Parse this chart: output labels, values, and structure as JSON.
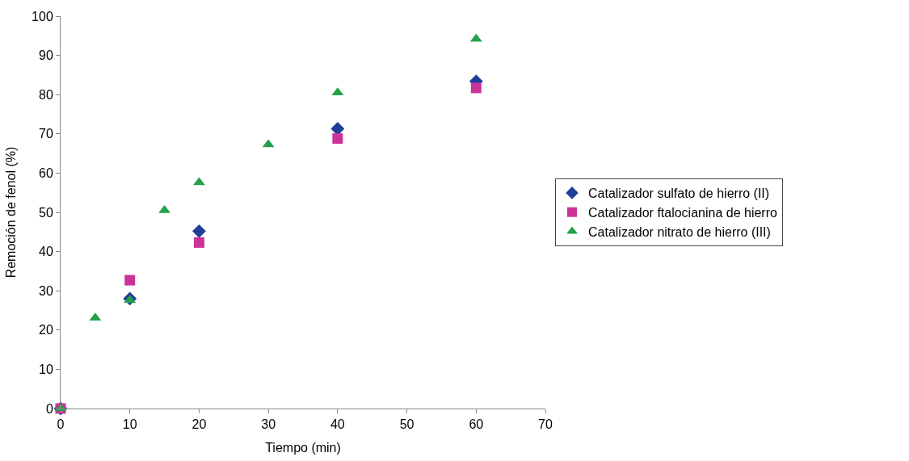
{
  "chart_data": {
    "type": "scatter",
    "xlabel": "Tiempo (min)",
    "ylabel": "Remoción de fenol (%)",
    "xlim": [
      0,
      70
    ],
    "xticks": [
      0,
      10,
      20,
      30,
      40,
      50,
      60,
      70
    ],
    "ylim": [
      0,
      100
    ],
    "yticks": [
      0,
      10,
      20,
      30,
      40,
      50,
      60,
      70,
      80,
      90,
      100
    ],
    "legend": "right",
    "series": [
      {
        "name": "Catalizador sulfato de hierro (II)",
        "color": "#1f3f99",
        "marker": "diamond",
        "x": [
          0,
          10,
          20,
          40,
          60
        ],
        "values": [
          0,
          28,
          45.2,
          71.3,
          83.4
        ]
      },
      {
        "name": "Catalizador ftalocianina de hierro",
        "color": "#cc3399",
        "marker": "square",
        "x": [
          0,
          10,
          20,
          40,
          60
        ],
        "values": [
          0,
          32.7,
          42.3,
          68.8,
          81.7
        ]
      },
      {
        "name": "Catalizador nitrato de hierro (III)",
        "color": "#22a04a",
        "marker": "triangle",
        "x": [
          0,
          5,
          10,
          15,
          20,
          30,
          40,
          60
        ],
        "values": [
          0,
          23.1,
          27.6,
          50.5,
          57.6,
          67.3,
          80.5,
          94.2
        ]
      }
    ]
  }
}
